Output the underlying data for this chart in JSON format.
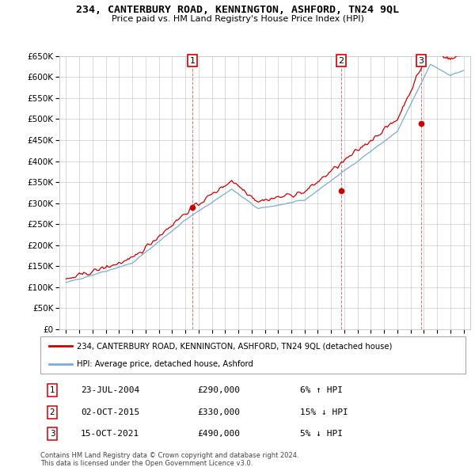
{
  "title": "234, CANTERBURY ROAD, KENNINGTON, ASHFORD, TN24 9QL",
  "subtitle": "Price paid vs. HM Land Registry's House Price Index (HPI)",
  "property_label": "234, CANTERBURY ROAD, KENNINGTON, ASHFORD, TN24 9QL (detached house)",
  "hpi_label": "HPI: Average price, detached house, Ashford",
  "sales": [
    {
      "num": 1,
      "date": "23-JUL-2004",
      "price": 290000,
      "pct": "6%",
      "dir": "↑"
    },
    {
      "num": 2,
      "date": "02-OCT-2015",
      "price": 330000,
      "pct": "15%",
      "dir": "↓"
    },
    {
      "num": 3,
      "date": "15-OCT-2021",
      "price": 490000,
      "pct": "5%",
      "dir": "↓"
    }
  ],
  "sale_years": [
    2004.554,
    2015.748,
    2021.787
  ],
  "sale_prices": [
    290000,
    330000,
    490000
  ],
  "ylim": [
    0,
    650000
  ],
  "yticks": [
    0,
    50000,
    100000,
    150000,
    200000,
    250000,
    300000,
    350000,
    400000,
    450000,
    500000,
    550000,
    600000,
    650000
  ],
  "xlim_start": 1994.5,
  "xlim_end": 2025.5,
  "footnote1": "Contains HM Land Registry data © Crown copyright and database right 2024.",
  "footnote2": "This data is licensed under the Open Government Licence v3.0.",
  "red_color": "#cc0000",
  "blue_color": "#7aadd4",
  "marker_color": "#cc0000",
  "vline_color": "#cc6666",
  "grid_color": "#cccccc",
  "hpi_seed": 42,
  "hpi_noise_scale": 1200,
  "red_noise_scale": 3500
}
